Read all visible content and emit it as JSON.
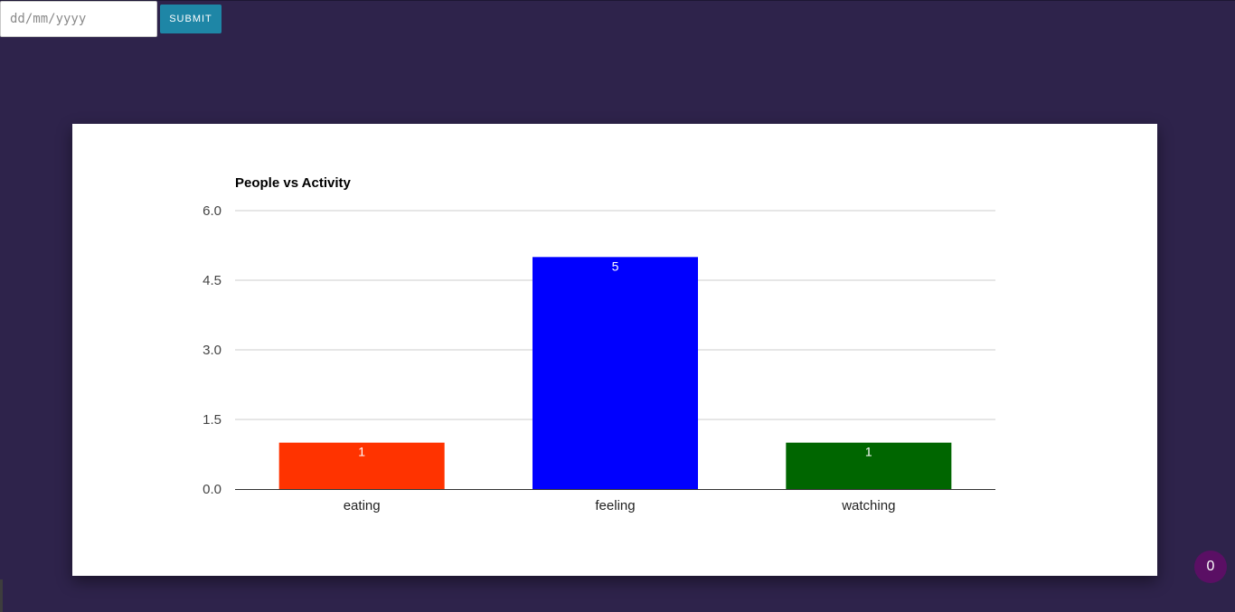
{
  "form": {
    "date_placeholder": "dd/mm/yyyy",
    "submit_label": "SUBMIT"
  },
  "badge": {
    "count": "0"
  },
  "colors": {
    "page_background": "#2e234b",
    "submit_button": "#1e86a6",
    "badge": "#5a0f64"
  },
  "chart_data": {
    "type": "bar",
    "title": "People vs Activity",
    "xlabel": "",
    "ylabel": "",
    "categories": [
      "eating",
      "feeling",
      "watching"
    ],
    "values": [
      1,
      5,
      1
    ],
    "data_labels": [
      "1",
      "5",
      "1"
    ],
    "colors": [
      "#ff3300",
      "#0000ff",
      "#006600"
    ],
    "ylim": [
      0,
      6
    ],
    "yticks": [
      0,
      1.5,
      3,
      4.5,
      6
    ],
    "ytick_labels": [
      "0.0",
      "1.5",
      "3.0",
      "4.5",
      "6.0"
    ],
    "grid": true,
    "legend": "none"
  }
}
